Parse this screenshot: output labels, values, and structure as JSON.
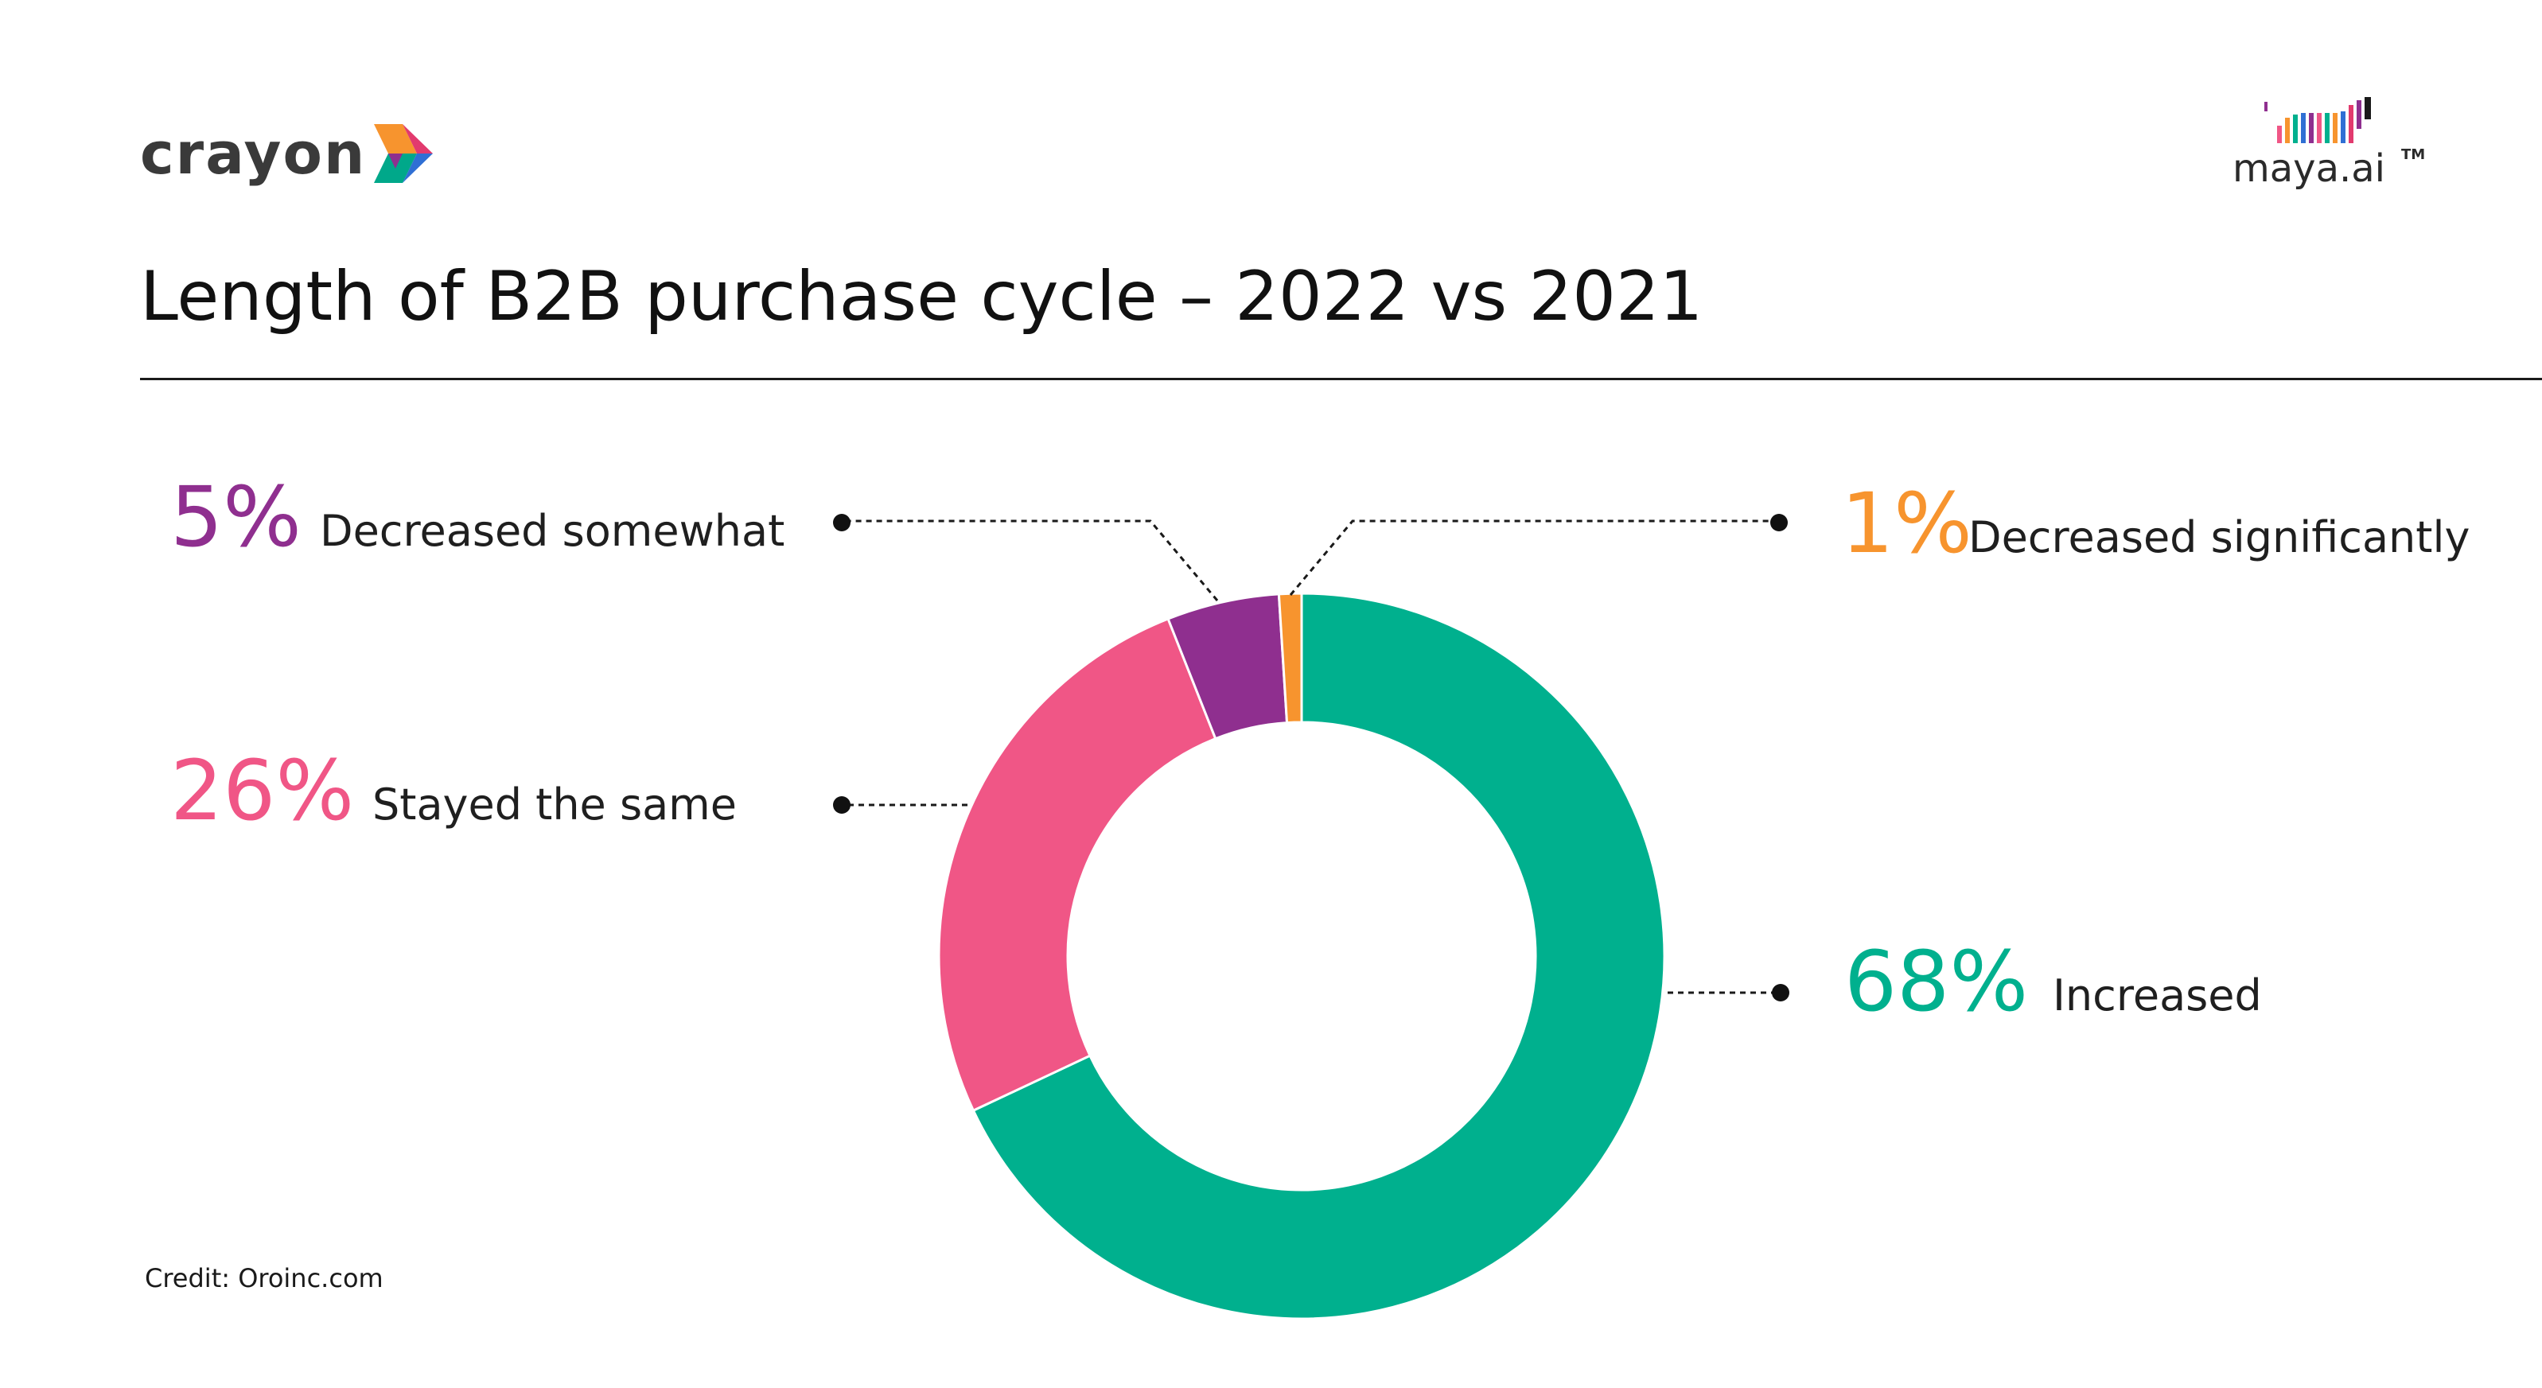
{
  "brand": {
    "left_logo_text": "crayon",
    "right_logo_text": "maya.ai",
    "right_logo_tm": "TM"
  },
  "title": "Length of B2B purchase cycle – 2022 vs 2021",
  "credit": "Credit: Oroinc.com",
  "chart_data": {
    "type": "pie",
    "variant": "donut",
    "title": "Length of B2B purchase cycle – 2022 vs 2021",
    "slices": [
      {
        "label": "Increased",
        "value": 68,
        "display": "68%",
        "color": "#00b08e",
        "label_side": "right"
      },
      {
        "label": "Stayed the same",
        "value": 26,
        "display": "26%",
        "color": "#f05686",
        "label_side": "left"
      },
      {
        "label": "Decreased somewhat",
        "value": 5,
        "display": "5%",
        "color": "#8f2f8f",
        "label_side": "left"
      },
      {
        "label": "Decreased significantly",
        "value": 1,
        "display": "1%",
        "color": "#f7942e",
        "label_side": "right"
      }
    ]
  }
}
